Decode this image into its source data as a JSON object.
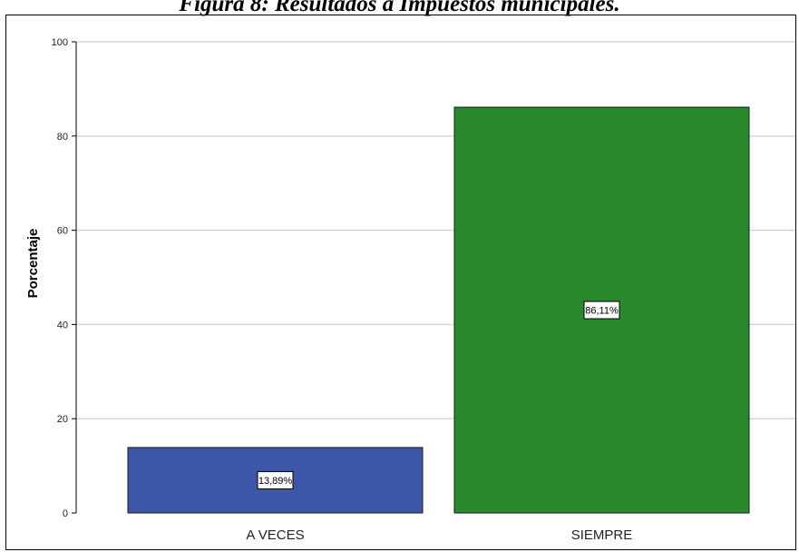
{
  "caption": "Figura 8: Resultados a Impuestos municipales.",
  "chart_data": {
    "type": "bar",
    "categories": [
      "A VECES",
      "SIEMPRE"
    ],
    "values": [
      13.89,
      86.11
    ],
    "data_labels": [
      "13,89%",
      "86,11%"
    ],
    "bar_colors": [
      "#3c57a8",
      "#288a2c"
    ],
    "ylabel": "Porcentaje",
    "xlabel": "",
    "ylim": [
      0,
      100
    ],
    "yticks": [
      0,
      20,
      40,
      60,
      80,
      100
    ],
    "grid": true
  }
}
